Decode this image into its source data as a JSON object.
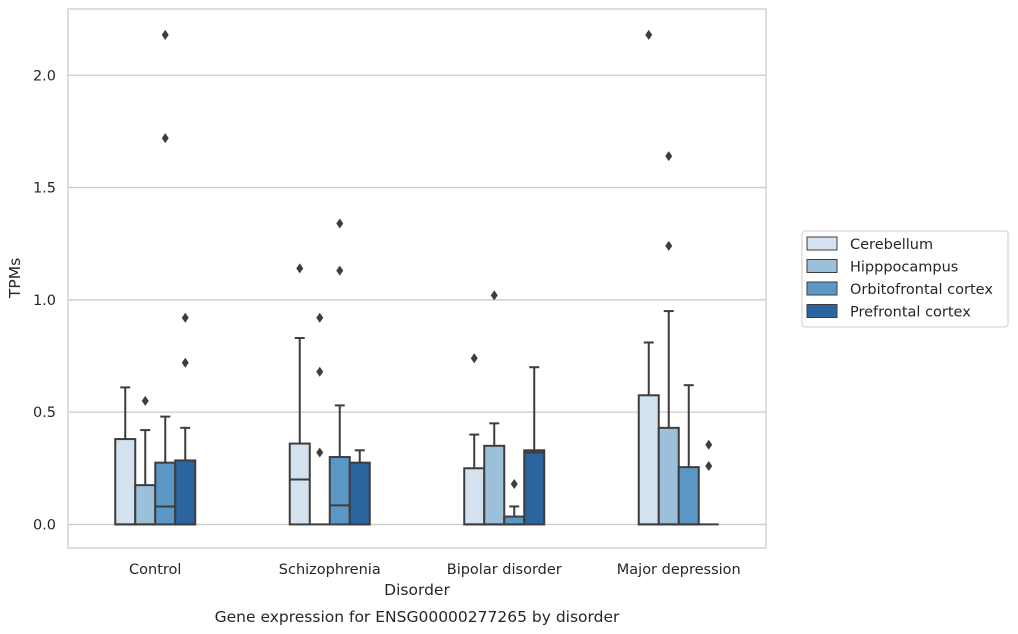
{
  "caption": "Gene expression for ENSG00000277265 by disorder",
  "chart_data": {
    "type": "box",
    "xlabel": "Disorder",
    "ylabel": "TPMs",
    "ylim": [
      -0.105,
      2.295
    ],
    "yticks": [
      0.0,
      0.5,
      1.0,
      1.5,
      2.0
    ],
    "ytick_labels": [
      "0.0",
      "0.5",
      "1.0",
      "1.5",
      "2.0"
    ],
    "grid": "horizontal",
    "legend_position": "right",
    "categories": [
      "Control",
      "Schizophrenia",
      "Bipolar disorder",
      "Major depression"
    ],
    "series": [
      {
        "name": "Cerebellum",
        "color": "#d4e2f0",
        "boxes": [
          {
            "q1": 0.0,
            "median": 0.0,
            "q3": 0.38,
            "whisker_low": 0.0,
            "whisker_high": 0.61,
            "outliers": []
          },
          {
            "q1": 0.0,
            "median": 0.2,
            "q3": 0.36,
            "whisker_low": 0.0,
            "whisker_high": 0.83,
            "outliers": [
              1.14
            ]
          },
          {
            "q1": 0.0,
            "median": 0.0,
            "q3": 0.25,
            "whisker_low": 0.0,
            "whisker_high": 0.4,
            "outliers": [
              0.74
            ]
          },
          {
            "q1": 0.0,
            "median": 0.0,
            "q3": 0.575,
            "whisker_low": 0.0,
            "whisker_high": 0.81,
            "outliers": [
              2.18
            ]
          }
        ]
      },
      {
        "name": "Hipppocampus",
        "color": "#9cc0da",
        "boxes": [
          {
            "q1": 0.0,
            "median": 0.0,
            "q3": 0.175,
            "whisker_low": 0.0,
            "whisker_high": 0.42,
            "outliers": [
              0.55
            ]
          },
          {
            "q1": 0.0,
            "median": 0.0,
            "q3": 0.0,
            "whisker_low": 0.0,
            "whisker_high": 0.0,
            "outliers": [
              0.92,
              0.68,
              0.32
            ]
          },
          {
            "q1": 0.0,
            "median": 0.0,
            "q3": 0.35,
            "whisker_low": 0.0,
            "whisker_high": 0.45,
            "outliers": [
              1.02
            ]
          },
          {
            "q1": 0.0,
            "median": 0.0,
            "q3": 0.43,
            "whisker_low": 0.0,
            "whisker_high": 0.95,
            "outliers": [
              1.64,
              1.24
            ]
          }
        ]
      },
      {
        "name": "Orbitofrontal cortex",
        "color": "#5b97c4",
        "boxes": [
          {
            "q1": 0.0,
            "median": 0.08,
            "q3": 0.275,
            "whisker_low": 0.0,
            "whisker_high": 0.48,
            "outliers": [
              2.18,
              1.72
            ]
          },
          {
            "q1": 0.0,
            "median": 0.085,
            "q3": 0.3,
            "whisker_low": 0.0,
            "whisker_high": 0.53,
            "outliers": [
              1.34,
              1.13
            ]
          },
          {
            "q1": 0.0,
            "median": 0.0,
            "q3": 0.035,
            "whisker_low": 0.0,
            "whisker_high": 0.08,
            "outliers": [
              0.18
            ]
          },
          {
            "q1": 0.0,
            "median": 0.0,
            "q3": 0.255,
            "whisker_low": 0.0,
            "whisker_high": 0.62,
            "outliers": []
          }
        ]
      },
      {
        "name": "Prefrontal cortex",
        "color": "#2b65a0",
        "boxes": [
          {
            "q1": 0.0,
            "median": 0.0,
            "q3": 0.285,
            "whisker_low": 0.0,
            "whisker_high": 0.43,
            "outliers": [
              0.92,
              0.72
            ]
          },
          {
            "q1": 0.0,
            "median": 0.0,
            "q3": 0.275,
            "whisker_low": 0.0,
            "whisker_high": 0.33,
            "outliers": []
          },
          {
            "q1": 0.0,
            "median": 0.32,
            "q3": 0.33,
            "whisker_low": 0.0,
            "whisker_high": 0.7,
            "outliers": []
          },
          {
            "q1": 0.0,
            "median": 0.0,
            "q3": 0.0,
            "whisker_low": 0.0,
            "whisker_high": 0.0,
            "outliers": [
              0.355,
              0.26
            ]
          }
        ]
      }
    ]
  }
}
